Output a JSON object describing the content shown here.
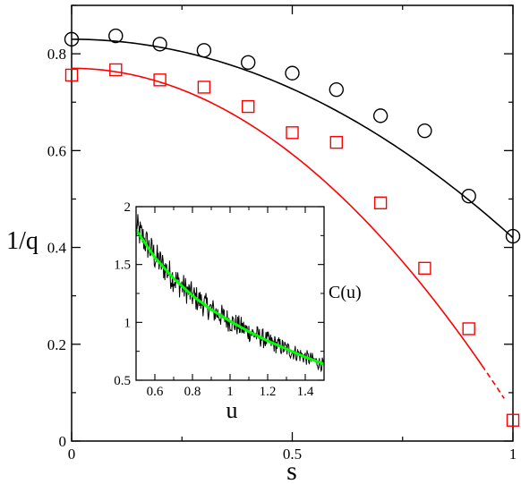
{
  "colors": {
    "black_series": "#000000",
    "red_series": "#ff0000",
    "inset_noise": "#000000",
    "inset_fit": "#00ff00"
  },
  "chart_data": [
    {
      "type": "scatter",
      "title": "",
      "xlabel": "s",
      "ylabel": "1/q",
      "xlim": [
        0,
        1
      ],
      "ylim": [
        0,
        0.9
      ],
      "x_ticks": [
        0,
        0.5,
        1
      ],
      "x_tick_labels": [
        "0",
        "0.5",
        "1"
      ],
      "y_ticks": [
        0,
        0.2,
        0.4,
        0.6,
        0.8
      ],
      "y_tick_labels": [
        "0",
        "0.2",
        "0.4",
        "0.6",
        "0.8"
      ],
      "grid": false,
      "series": [
        {
          "marker": "circle",
          "color": "#000000",
          "x": [
            0,
            0.1,
            0.2,
            0.3,
            0.4,
            0.5,
            0.6,
            0.7,
            0.8,
            0.9,
            1.0
          ],
          "y": [
            0.83,
            0.837,
            0.82,
            0.807,
            0.782,
            0.76,
            0.726,
            0.672,
            0.641,
            0.506,
            0.423
          ],
          "fit": {
            "kind": "quadratic",
            "y0": 0.83,
            "y1": 0.42,
            "solid_to": 1.0
          }
        },
        {
          "marker": "square",
          "color": "#ff0000",
          "x": [
            0,
            0.1,
            0.2,
            0.3,
            0.4,
            0.5,
            0.6,
            0.7,
            0.8,
            0.9,
            1.0
          ],
          "y": [
            0.756,
            0.767,
            0.746,
            0.731,
            0.691,
            0.637,
            0.617,
            0.492,
            0.357,
            0.232,
            0.043
          ],
          "fit": {
            "kind": "quadratic",
            "y0": 0.77,
            "y1": 0.06,
            "solid_to": 0.93,
            "dashed_to": 0.98
          }
        }
      ]
    },
    {
      "type": "line",
      "title": "",
      "xlabel": "u",
      "ylabel": "C(u)",
      "xlim": [
        0.5,
        1.5
      ],
      "ylim": [
        0.5,
        2.0
      ],
      "x_ticks": [
        0.6,
        0.8,
        1.0,
        1.2,
        1.4
      ],
      "x_tick_labels": [
        "0.6",
        "0.8",
        "1",
        "1.2",
        "1.4"
      ],
      "y_ticks": [
        0.5,
        1.0,
        1.5,
        2.0
      ],
      "y_tick_labels": [
        "0.5",
        "1",
        "1.5",
        "2"
      ],
      "grid": false,
      "series": [
        {
          "kind": "noisy-data",
          "color": "#000000",
          "x": [
            0.5,
            0.6,
            0.7,
            0.8,
            0.9,
            1.0,
            1.1,
            1.2,
            1.3,
            1.4,
            1.5
          ],
          "y": [
            1.82,
            1.57,
            1.38,
            1.23,
            1.11,
            1.01,
            0.92,
            0.84,
            0.77,
            0.7,
            0.63
          ]
        },
        {
          "kind": "fit",
          "color": "#00ff00",
          "x": [
            0.5,
            0.6,
            0.7,
            0.8,
            0.9,
            1.0,
            1.1,
            1.2,
            1.3,
            1.4,
            1.5
          ],
          "y": [
            1.8,
            1.56,
            1.38,
            1.23,
            1.11,
            1.01,
            0.92,
            0.84,
            0.77,
            0.7,
            0.64
          ]
        }
      ]
    }
  ]
}
